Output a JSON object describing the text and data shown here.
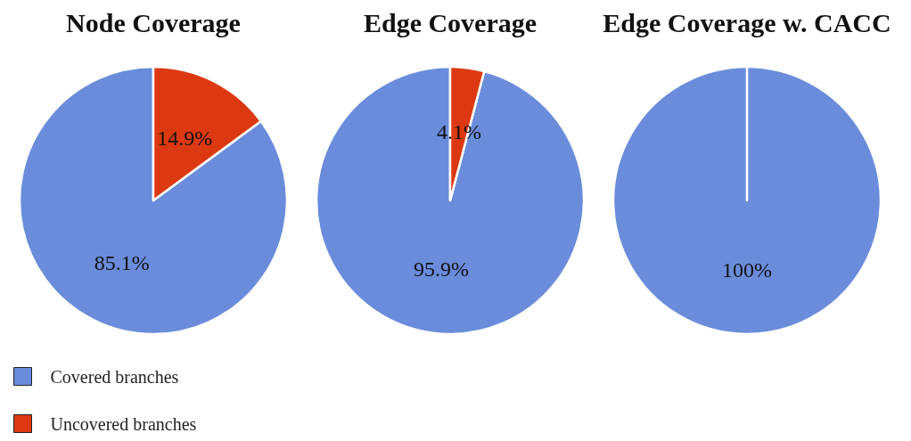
{
  "chart_data": [
    {
      "type": "pie",
      "title": "Node Coverage",
      "categories": [
        "Covered branches",
        "Uncovered branches"
      ],
      "values": [
        85.1,
        14.9
      ],
      "value_labels": [
        "85.1%",
        "14.9%"
      ],
      "colors": [
        "#6a8cdb",
        "#dc3912"
      ],
      "legend": "bottom left"
    },
    {
      "type": "pie",
      "title": "Edge Coverage",
      "categories": [
        null,
        null
      ],
      "values": [
        95.9,
        4.1
      ],
      "value_labels": [
        "95.9%",
        "4.1%"
      ],
      "colors": [
        "#6a8cdb",
        "#dc3912"
      ]
    },
    {
      "type": "pie",
      "title": "Edge Coverage w. CACC",
      "categories": [
        null,
        null
      ],
      "values": [
        100,
        0
      ],
      "value_labels": [
        "100%",
        null
      ],
      "colors": [
        "#6a8cdb",
        "#dc3912"
      ]
    }
  ]
}
